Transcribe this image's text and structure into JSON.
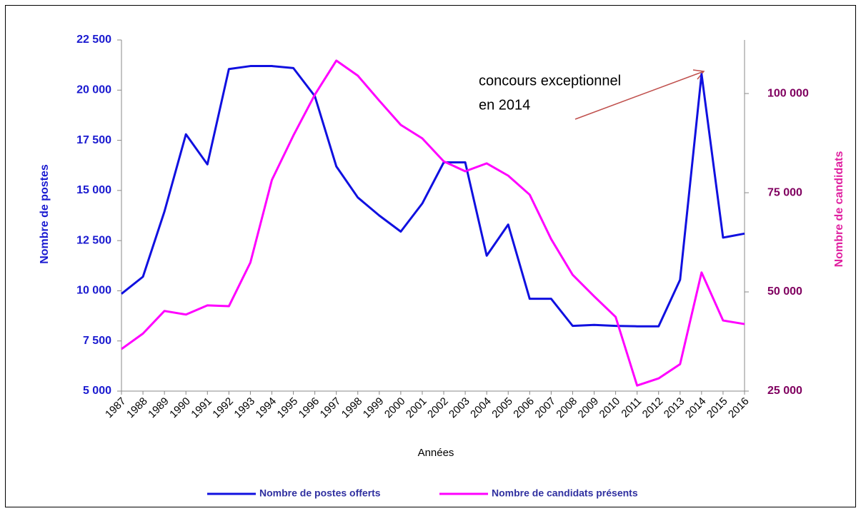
{
  "chart_data": {
    "type": "line",
    "categories": [
      "1987",
      "1988",
      "1989",
      "1990",
      "1991",
      "1992",
      "1993",
      "1994",
      "1995",
      "1996",
      "1997",
      "1998",
      "1999",
      "2000",
      "2001",
      "2002",
      "2003",
      "2004",
      "2005",
      "2006",
      "2007",
      "2008",
      "2009",
      "2010",
      "2011",
      "2012",
      "2013",
      "2014",
      "2015",
      "2016"
    ],
    "series": [
      {
        "name": "Nombre de postes offerts",
        "color": "#1010e0",
        "axis": "y",
        "values": [
          9850,
          10700,
          13950,
          17800,
          16300,
          21050,
          21200,
          21200,
          21100,
          19700,
          16200,
          14650,
          13750,
          12950,
          14350,
          16400,
          16400,
          11750,
          13300,
          9600,
          9600,
          8250,
          8300,
          8250,
          8230,
          8230,
          10550,
          20800,
          12650,
          12850
        ]
      },
      {
        "name": "Nombre de candidats présents",
        "color": "#ff00ff",
        "axis": "y2",
        "values": [
          35600,
          39500,
          45200,
          44300,
          46600,
          46400,
          57400,
          78200,
          89400,
          99700,
          108300,
          104500,
          98200,
          92100,
          88700,
          82900,
          80400,
          82400,
          79300,
          74500,
          63300,
          54300,
          48900,
          43700,
          26400,
          28200,
          31800,
          54900,
          42800,
          41900
        ]
      }
    ],
    "xlabel": "Années",
    "ylabel": "Nombre de postes",
    "y2label": "Nombre de candidats",
    "annotation": [
      "concours exceptionnel",
      "en 2014"
    ],
    "ylim": [
      5000,
      22500
    ],
    "yticks": [
      {
        "value": 5000,
        "label": "5 000"
      },
      {
        "value": 7500,
        "label": "7 500"
      },
      {
        "value": 10000,
        "label": "10 000"
      },
      {
        "value": 12500,
        "label": "12 500"
      },
      {
        "value": 15000,
        "label": "15 000"
      },
      {
        "value": 17500,
        "label": "17 500"
      },
      {
        "value": 20000,
        "label": "20 000"
      },
      {
        "value": 22500,
        "label": "22 500"
      }
    ],
    "y2lim": [
      25000,
      113500
    ],
    "y2ticks": [
      {
        "value": 25000,
        "label": "25 000"
      },
      {
        "value": 50000,
        "label": "50 000"
      },
      {
        "value": 75000,
        "label": "75 000"
      },
      {
        "value": 100000,
        "label": "100 000"
      }
    ],
    "legend": "bottom"
  }
}
